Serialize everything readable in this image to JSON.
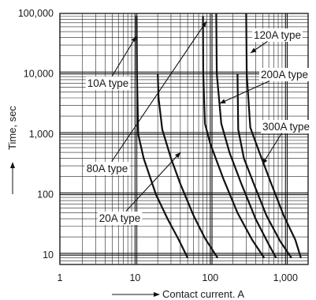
{
  "chart_data": {
    "type": "line",
    "title": "",
    "xlabel": "Contact current. A",
    "ylabel": "Time, sec",
    "x_scale": "log",
    "y_scale": "log",
    "xlim": [
      1,
      2000
    ],
    "ylim": [
      7,
      100000
    ],
    "grid": true,
    "x_ticks": [
      {
        "value": 1,
        "label": "1"
      },
      {
        "value": 10,
        "label": "10"
      },
      {
        "value": 100,
        "label": "100"
      },
      {
        "value": 1000,
        "label": "1,000"
      }
    ],
    "y_ticks": [
      {
        "value": 10,
        "label": "10"
      },
      {
        "value": 100,
        "label": "100"
      },
      {
        "value": 1000,
        "label": "1,000"
      },
      {
        "value": 10000,
        "label": "10,000"
      },
      {
        "value": 100000,
        "label": "100,000"
      }
    ],
    "series": [
      {
        "name": "10A type",
        "x": [
          10.5,
          10.6,
          11,
          13,
          19,
          27,
          38,
          50
        ],
        "y": [
          90000,
          10000,
          1000,
          400,
          100,
          40,
          18,
          9
        ]
      },
      {
        "name": "20A type",
        "x": [
          20,
          20.5,
          23,
          30,
          40,
          60,
          85,
          125
        ],
        "y": [
          10000,
          4000,
          1200,
          400,
          150,
          45,
          19,
          9
        ]
      },
      {
        "name": "80A type",
        "x": [
          80,
          80.5,
          85,
          100,
          150,
          230,
          360,
          520
        ],
        "y": [
          90000,
          10000,
          1500,
          700,
          180,
          50,
          18,
          9
        ]
      },
      {
        "name": "120A type",
        "x": [
          120,
          122,
          140,
          180,
          260,
          400,
          600,
          750
        ],
        "y": [
          100000,
          10000,
          1500,
          500,
          150,
          40,
          15,
          9
        ]
      },
      {
        "name": "200A type",
        "x": [
          230,
          235,
          280,
          380,
          560,
          850,
          1200
        ],
        "y": [
          10000,
          1200,
          400,
          150,
          45,
          17,
          9
        ]
      },
      {
        "name": "300A type",
        "x": [
          300,
          305,
          340,
          450,
          650,
          950,
          1350,
          1600
        ],
        "y": [
          100000,
          10000,
          1300,
          500,
          150,
          45,
          18,
          9
        ]
      }
    ],
    "annotations": [
      {
        "text": "10A type",
        "series": 0
      },
      {
        "text": "20A type",
        "series": 1
      },
      {
        "text": "80A type",
        "series": 2
      },
      {
        "text": "120A type",
        "series": 3
      },
      {
        "text": "200A type",
        "series": 4
      },
      {
        "text": "300A type",
        "series": 5
      }
    ]
  }
}
